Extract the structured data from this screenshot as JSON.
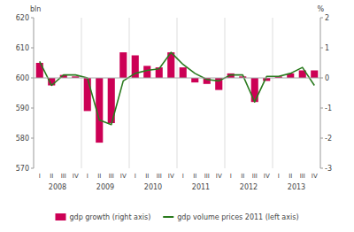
{
  "chart_data": {
    "type": "bar",
    "categories": [
      "I",
      "II",
      "III",
      "IV",
      "I",
      "II",
      "III",
      "IV",
      "I",
      "II",
      "III",
      "IV",
      "I",
      "II",
      "III",
      "IV",
      "I",
      "II",
      "III",
      "IV",
      "I",
      "II",
      "III",
      "IV"
    ],
    "series": [
      {
        "name": "gdp growth (right axis)",
        "type": "bar",
        "color": "#cc0055",
        "axis": "y2",
        "values": [
          0.5,
          -0.25,
          0.1,
          0.05,
          -1.1,
          -2.15,
          -1.5,
          0.85,
          0.75,
          0.4,
          0.35,
          0.85,
          0.35,
          -0.15,
          -0.2,
          -0.4,
          0.15,
          0.05,
          -0.8,
          -0.1,
          0.05,
          0.15,
          0.25,
          0.25
        ]
      },
      {
        "name": "gdp volume prices 2011 (left axis)",
        "type": "line",
        "color": "#2a7a1e",
        "values": [
          605.5,
          597.5,
          601.0,
          601.0,
          600.0,
          586.0,
          584.5,
          599.0,
          601.5,
          602.5,
          603.0,
          608.5,
          604.5,
          601.5,
          599.5,
          599.0,
          601.0,
          601.0,
          592.0,
          600.5,
          600.5,
          601.5,
          603.5,
          597.5
        ]
      }
    ],
    "ylabel": "bln",
    "y2label": "%",
    "ylim": [
      570,
      620
    ],
    "yticks": [
      570,
      580,
      590,
      600,
      610,
      620
    ],
    "y2lim": [
      -3,
      2
    ],
    "y2ticks": [
      -3,
      -2,
      -1,
      0,
      1,
      2
    ],
    "annotations": [
      {
        "text": "2008",
        "x": 1.5
      },
      {
        "text": "2009",
        "x": 5.5
      },
      {
        "text": "2010",
        "x": 9.5
      },
      {
        "text": "2011",
        "x": 13.5
      },
      {
        "text": "2012",
        "x": 17.5
      },
      {
        "text": "2013",
        "x": 21.5
      }
    ],
    "grid": false,
    "legend": "bottom"
  }
}
